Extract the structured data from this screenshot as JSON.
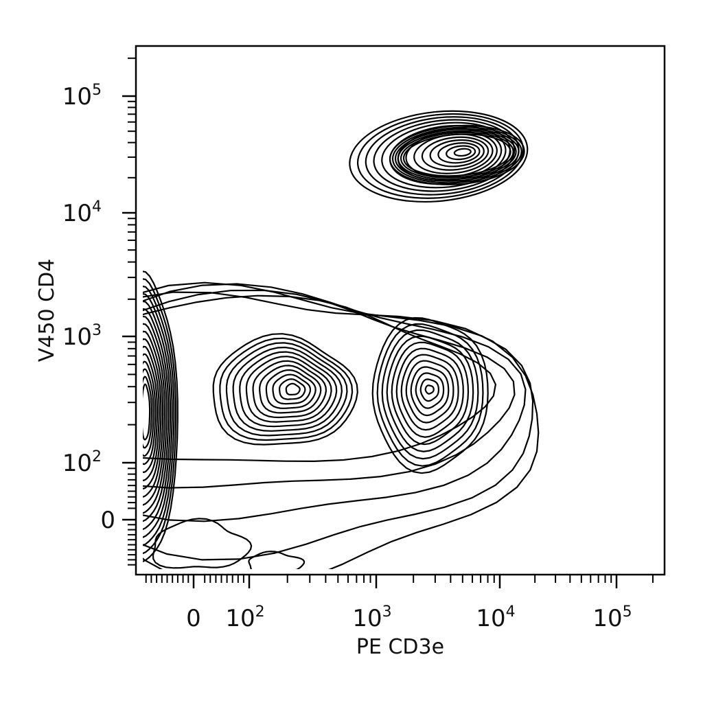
{
  "chart_data": {
    "type": "contour",
    "xlabel": "PE CD3e",
    "ylabel": "V450 CD4",
    "x_scale": "biexponential",
    "y_scale": "biexponential",
    "xlim": [
      -60,
      250000
    ],
    "ylim": [
      -60,
      250000
    ],
    "x_ticks": [
      {
        "value": 0,
        "base": "0",
        "exp": ""
      },
      {
        "value": 100,
        "base": "10",
        "exp": "2"
      },
      {
        "value": 1000,
        "base": "10",
        "exp": "3"
      },
      {
        "value": 10000,
        "base": "10",
        "exp": "4"
      },
      {
        "value": 100000,
        "base": "10",
        "exp": "5"
      }
    ],
    "y_ticks": [
      {
        "value": 0,
        "base": "0",
        "exp": ""
      },
      {
        "value": 100,
        "base": "10",
        "exp": "2"
      },
      {
        "value": 1000,
        "base": "10",
        "exp": "3"
      },
      {
        "value": 10000,
        "base": "10",
        "exp": "4"
      },
      {
        "value": 100000,
        "base": "10",
        "exp": "5"
      }
    ],
    "populations": [
      {
        "center_x": 5000,
        "center_y": 33000,
        "levels": 14
      },
      {
        "center_x": 220,
        "center_y": 380,
        "levels": 12
      },
      {
        "center_x": 2700,
        "center_y": 380,
        "levels": 12
      },
      {
        "center_x": -40,
        "center_y": 250,
        "levels": 16
      }
    ],
    "grid": false,
    "legend": "none"
  }
}
